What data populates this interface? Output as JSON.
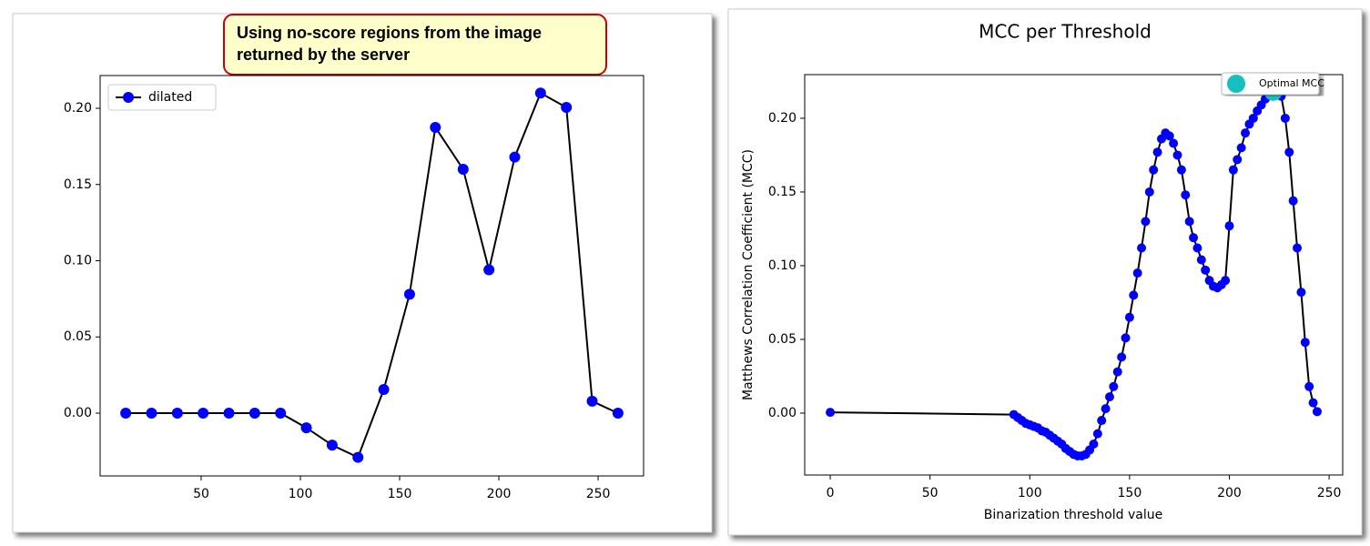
{
  "chart_data": [
    {
      "type": "line",
      "annotation": [
        "Using no-score regions from the image",
        "returned by the server"
      ],
      "xlim": [
        -0.9,
        272.9
      ],
      "ylim": [
        -0.0412,
        0.2215
      ],
      "xticks": [
        50,
        100,
        150,
        200,
        250
      ],
      "yticks": [
        {
          "value": 0,
          "label": "0.00"
        },
        {
          "value": 0.05,
          "label": "0.05"
        },
        {
          "value": 0.1,
          "label": "0.10"
        },
        {
          "value": 0.15,
          "label": "0.15"
        },
        {
          "value": 0.2,
          "label": "0.20"
        }
      ],
      "legend": "upper left",
      "series": [
        {
          "name": "dilated",
          "color": "#0000ff",
          "line_color": "#000000",
          "x": [
            12,
            25,
            38,
            51,
            64,
            77,
            90,
            103,
            116,
            129,
            142,
            155,
            168,
            182,
            195,
            208,
            221,
            234,
            247,
            260
          ],
          "values": [
            0,
            0,
            0,
            0,
            0,
            0,
            0,
            -0.0096,
            -0.021,
            -0.029,
            0.0155,
            0.078,
            0.1875,
            0.16,
            0.094,
            0.168,
            0.21,
            0.2006,
            0.0078,
            0
          ]
        }
      ]
    },
    {
      "type": "line",
      "title": "MCC per Threshold",
      "xlabel": "Binarization threshold value",
      "ylabel": "Matthews Correlation Coefficient (MCC)",
      "xlim": [
        -12.8,
        256.8
      ],
      "ylim": [
        -0.042,
        0.2296
      ],
      "xticks": [
        0,
        50,
        100,
        150,
        200,
        250
      ],
      "yticks": [
        {
          "value": 0,
          "label": "0.00"
        },
        {
          "value": 0.05,
          "label": "0.05"
        },
        {
          "value": 0.1,
          "label": "0.10"
        },
        {
          "value": 0.15,
          "label": "0.15"
        },
        {
          "value": 0.2,
          "label": "0.20"
        }
      ],
      "legend": "upper right",
      "series": [
        {
          "color": "#0000ff",
          "line_color": "#000000",
          "x": [
            0,
            92,
            94,
            96,
            98,
            100,
            102,
            104,
            106,
            108,
            110,
            112,
            114,
            116,
            118,
            120,
            122,
            124,
            126,
            128,
            130,
            132,
            134,
            136,
            138,
            140,
            142,
            144,
            146,
            148,
            150,
            152,
            154,
            156,
            158,
            160,
            162,
            164,
            166,
            168,
            170,
            172,
            174,
            176,
            178,
            180,
            182,
            184,
            186,
            188,
            190,
            192,
            194,
            196,
            198,
            200,
            202,
            204,
            206,
            208,
            210,
            212,
            214,
            216,
            218,
            220,
            222,
            224,
            226,
            228,
            230,
            232,
            234,
            236,
            238,
            240,
            242,
            244
          ],
          "values": [
            0.0005,
            -0.001,
            -0.003,
            -0.005,
            -0.007,
            -0.008,
            -0.009,
            -0.01,
            -0.012,
            -0.013,
            -0.015,
            -0.017,
            -0.019,
            -0.021,
            -0.024,
            -0.026,
            -0.028,
            -0.029,
            -0.029,
            -0.028,
            -0.025,
            -0.021,
            -0.014,
            -0.005,
            0.003,
            0.011,
            0.018,
            0.028,
            0.038,
            0.051,
            0.065,
            0.08,
            0.095,
            0.112,
            0.13,
            0.15,
            0.165,
            0.177,
            0.186,
            0.19,
            0.188,
            0.183,
            0.175,
            0.165,
            0.148,
            0.13,
            0.119,
            0.112,
            0.104,
            0.097,
            0.09,
            0.086,
            0.085,
            0.087,
            0.09,
            0.127,
            0.165,
            0.172,
            0.18,
            0.19,
            0.196,
            0.2,
            0.205,
            0.209,
            0.213,
            0.216,
            0.218,
            0.219,
            0.215,
            0.2,
            0.177,
            0.144,
            0.112,
            0.082,
            0.048,
            0.018,
            0.007,
            0.001
          ]
        },
        {
          "name": "Optimal MCC",
          "color": "#17bfbf",
          "x": [
            222
          ],
          "values": [
            0.218
          ]
        }
      ]
    }
  ]
}
